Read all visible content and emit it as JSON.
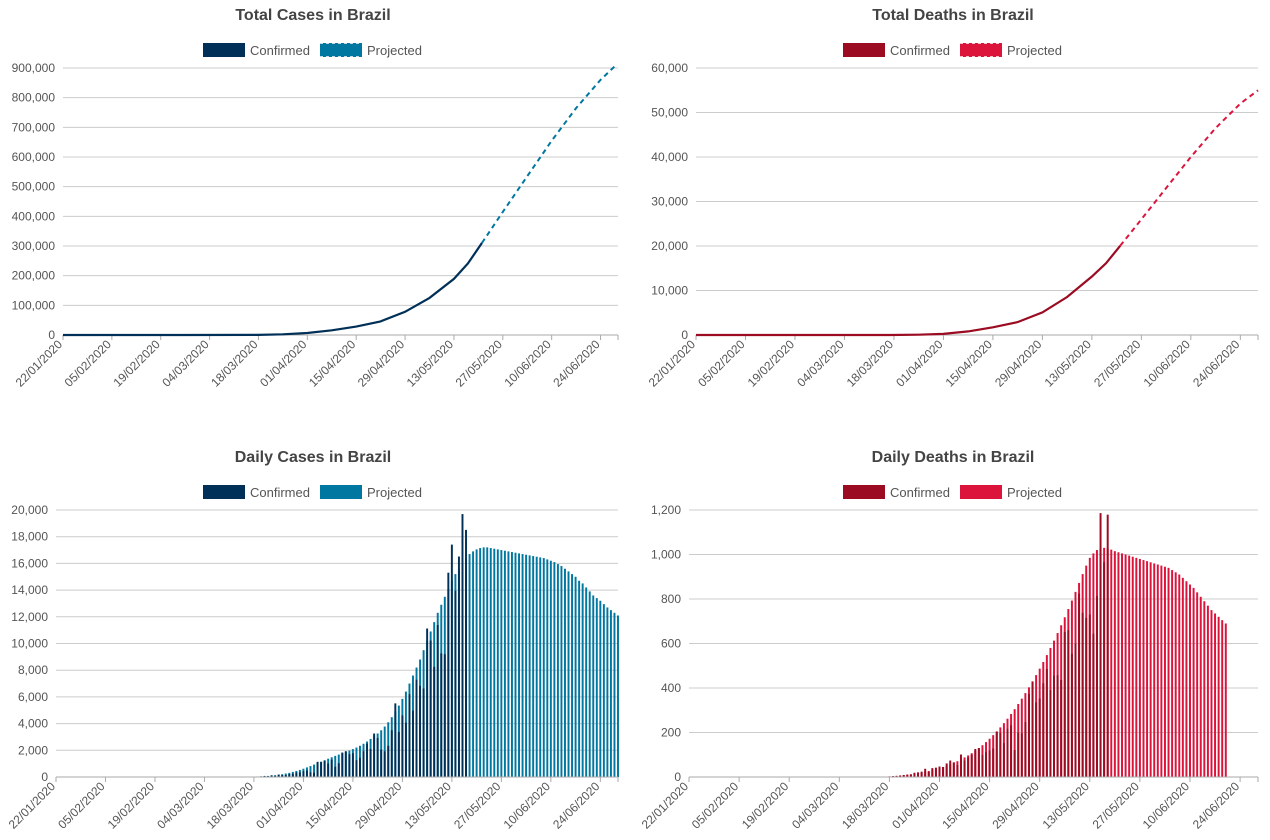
{
  "chart_data": [
    {
      "id": "total-cases",
      "type": "line",
      "title": "Total Cases in Brazil",
      "legend": [
        "Confirmed",
        "Projected"
      ],
      "colors": {
        "confirmed": "#003057",
        "projected": "#0077a0"
      },
      "ylim": [
        0,
        900000
      ],
      "yticks": [
        0,
        100000,
        200000,
        300000,
        400000,
        500000,
        600000,
        700000,
        800000,
        900000
      ],
      "ytick_labels": [
        "0",
        "100,000",
        "200,000",
        "300,000",
        "400,000",
        "500,000",
        "600,000",
        "700,000",
        "800,000",
        "900,000"
      ],
      "x_ticks": [
        "22/01/2020",
        "05/02/2020",
        "19/02/2020",
        "04/03/2020",
        "18/03/2020",
        "01/04/2020",
        "15/04/2020",
        "29/04/2020",
        "13/05/2020",
        "27/05/2020",
        "10/06/2020",
        "24/06/2020"
      ],
      "confirmed_points": [
        [
          "22/01/2020",
          0
        ],
        [
          "26/02/2020",
          1
        ],
        [
          "18/03/2020",
          428
        ],
        [
          "25/03/2020",
          2433
        ],
        [
          "01/04/2020",
          6836
        ],
        [
          "08/04/2020",
          15927
        ],
        [
          "15/04/2020",
          28320
        ],
        [
          "22/04/2020",
          45757
        ],
        [
          "29/04/2020",
          78162
        ],
        [
          "06/05/2020",
          125218
        ],
        [
          "13/05/2020",
          188974
        ],
        [
          "17/05/2020",
          241080
        ],
        [
          "21/05/2020",
          310087
        ]
      ],
      "projected_points": [
        [
          "21/05/2020",
          310087
        ],
        [
          "27/05/2020",
          415000
        ],
        [
          "03/06/2020",
          535000
        ],
        [
          "10/06/2020",
          655000
        ],
        [
          "17/06/2020",
          765000
        ],
        [
          "24/06/2020",
          860000
        ],
        [
          "28/06/2020",
          905000
        ]
      ]
    },
    {
      "id": "total-deaths",
      "type": "line",
      "title": "Total Deaths in Brazil",
      "legend": [
        "Confirmed",
        "Projected"
      ],
      "colors": {
        "confirmed": "#9b0b22",
        "projected": "#dc143c"
      },
      "ylim": [
        0,
        60000
      ],
      "yticks": [
        0,
        10000,
        20000,
        30000,
        40000,
        50000,
        60000
      ],
      "ytick_labels": [
        "0",
        "10,000",
        "20,000",
        "30,000",
        "40,000",
        "50,000",
        "60,000"
      ],
      "x_ticks": [
        "22/01/2020",
        "05/02/2020",
        "19/02/2020",
        "04/03/2020",
        "18/03/2020",
        "01/04/2020",
        "15/04/2020",
        "29/04/2020",
        "13/05/2020",
        "27/05/2020",
        "10/06/2020",
        "24/06/2020"
      ],
      "confirmed_points": [
        [
          "22/01/2020",
          0
        ],
        [
          "17/03/2020",
          1
        ],
        [
          "25/03/2020",
          59
        ],
        [
          "01/04/2020",
          241
        ],
        [
          "08/04/2020",
          819
        ],
        [
          "15/04/2020",
          1736
        ],
        [
          "22/04/2020",
          2906
        ],
        [
          "29/04/2020",
          5083
        ],
        [
          "06/05/2020",
          8536
        ],
        [
          "13/05/2020",
          13149
        ],
        [
          "17/05/2020",
          16118
        ],
        [
          "21/05/2020",
          20047
        ]
      ],
      "projected_points": [
        [
          "21/05/2020",
          20047
        ],
        [
          "27/05/2020",
          26000
        ],
        [
          "03/06/2020",
          33000
        ],
        [
          "10/06/2020",
          40000
        ],
        [
          "17/06/2020",
          46500
        ],
        [
          "24/06/2020",
          52000
        ],
        [
          "29/06/2020",
          55000
        ]
      ]
    },
    {
      "id": "daily-cases",
      "type": "bar",
      "title": "Daily Cases in Brazil",
      "legend": [
        "Confirmed",
        "Projected"
      ],
      "colors": {
        "confirmed": "#003057",
        "projected": "#0077a0"
      },
      "ylim": [
        0,
        20000
      ],
      "yticks": [
        0,
        2000,
        4000,
        6000,
        8000,
        10000,
        12000,
        14000,
        16000,
        18000,
        20000
      ],
      "ytick_labels": [
        "0",
        "2,000",
        "4,000",
        "6,000",
        "8,000",
        "10,000",
        "12,000",
        "14,000",
        "16,000",
        "18,000",
        "20,000"
      ],
      "x_ticks": [
        "22/01/2020",
        "05/02/2020",
        "19/02/2020",
        "04/03/2020",
        "18/03/2020",
        "01/04/2020",
        "15/04/2020",
        "29/04/2020",
        "13/05/2020",
        "27/05/2020",
        "10/06/2020",
        "24/06/2020"
      ],
      "start_date": "22/01/2020",
      "confirmed_end_date": "21/05/2020",
      "end_date": "29/06/2020",
      "confirmed_values": [
        0,
        0,
        0,
        0,
        0,
        0,
        0,
        0,
        0,
        0,
        0,
        0,
        0,
        0,
        0,
        0,
        0,
        0,
        0,
        0,
        0,
        0,
        0,
        0,
        0,
        0,
        0,
        0,
        0,
        0,
        0,
        0,
        0,
        0,
        0,
        1,
        0,
        0,
        0,
        0,
        0,
        0,
        0,
        0,
        0,
        0,
        0,
        0,
        0,
        0,
        0,
        10,
        0,
        0,
        0,
        20,
        10,
        40,
        52,
        80,
        60,
        130,
        101,
        181,
        148,
        150,
        225,
        250,
        340,
        345,
        432,
        487,
        352,
        323,
        1138,
        1119,
        1208,
        1012,
        1304,
        770,
        1031,
        1832,
        1935,
        1708,
        1789,
        1261,
        1442,
        1927,
        2498,
        2105,
        3257,
        2917,
        2055,
        1927,
        2336,
        3503,
        5514,
        3379,
        4613,
        4075,
        6209,
        4970,
        7288,
        6835,
        6633,
        11121,
        10222,
        8254,
        11385,
        9258,
        9196,
        15305,
        17408,
        13944,
        16517,
        19694,
        18508
      ],
      "projected_values": [
        0,
        0,
        0,
        0,
        0,
        0,
        0,
        0,
        0,
        0,
        0,
        0,
        0,
        0,
        0,
        0,
        0,
        0,
        0,
        0,
        0,
        0,
        0,
        0,
        0,
        0,
        0,
        0,
        0,
        0,
        0,
        0,
        0,
        0,
        0,
        0,
        0,
        0,
        0,
        0,
        0,
        0,
        0,
        0,
        0,
        0,
        0,
        0,
        0,
        0,
        0,
        0,
        0,
        0,
        0,
        0,
        0,
        0,
        0,
        50,
        80,
        100,
        130,
        170,
        210,
        260,
        310,
        380,
        450,
        530,
        620,
        720,
        820,
        930,
        1040,
        1150,
        1260,
        1370,
        1480,
        1580,
        1680,
        1780,
        1880,
        1980,
        2090,
        2210,
        2340,
        2490,
        2660,
        2850,
        3050,
        3260,
        3500,
        3780,
        4100,
        4480,
        4900,
        5350,
        5850,
        6400,
        7000,
        7600,
        8200,
        8800,
        9500,
        10200,
        10900,
        11600,
        12300,
        12900,
        13500,
        14100,
        14700,
        15200,
        15600,
        16000,
        16400,
        16700,
        16900,
        17050,
        17150,
        17200,
        17200,
        17150,
        17100,
        17050,
        17000,
        16950,
        16900,
        16850,
        16800,
        16750,
        16700,
        16650,
        16600,
        16550,
        16500,
        16450,
        16400,
        16300,
        16200,
        16100,
        15950,
        15800,
        15600,
        15400,
        15200,
        15000,
        14700,
        14500,
        14200,
        13900,
        13600,
        13400,
        13200,
        12950,
        12700,
        12500,
        12300,
        12100
      ]
    },
    {
      "id": "daily-deaths",
      "type": "bar",
      "title": "Daily Deaths in Brazil",
      "legend": [
        "Confirmed",
        "Projected"
      ],
      "colors": {
        "confirmed": "#9b0b22",
        "projected": "#dc143c"
      },
      "ylim": [
        0,
        1200
      ],
      "yticks": [
        0,
        200,
        400,
        600,
        800,
        1000,
        1200
      ],
      "ytick_labels": [
        "0",
        "200",
        "400",
        "600",
        "800",
        "1,000",
        "1,200"
      ],
      "x_ticks": [
        "22/01/2020",
        "05/02/2020",
        "19/02/2020",
        "04/03/2020",
        "18/03/2020",
        "01/04/2020",
        "15/04/2020",
        "29/04/2020",
        "13/05/2020",
        "27/05/2020",
        "10/06/2020",
        "24/06/2020"
      ],
      "start_date": "22/01/2020",
      "confirmed_end_date": "21/05/2020",
      "end_date": "29/06/2020",
      "confirmed_values": [
        0,
        0,
        0,
        0,
        0,
        0,
        0,
        0,
        0,
        0,
        0,
        0,
        0,
        0,
        0,
        0,
        0,
        0,
        0,
        0,
        0,
        0,
        0,
        0,
        0,
        0,
        0,
        0,
        0,
        0,
        0,
        0,
        0,
        0,
        0,
        0,
        0,
        0,
        0,
        0,
        0,
        0,
        0,
        0,
        0,
        0,
        0,
        0,
        0,
        0,
        0,
        0,
        0,
        0,
        0,
        1,
        2,
        4,
        5,
        7,
        9,
        11,
        12,
        19,
        21,
        24,
        37,
        23,
        40,
        42,
        47,
        45,
        61,
        74,
        66,
        54,
        101,
        74,
        88,
        100,
        126,
        130,
        99,
        111,
        119,
        128,
        204,
        198,
        152,
        217,
        232,
        121,
        199,
        196,
        247,
        373,
        428,
        335,
        353,
        421,
        485,
        391,
        456,
        458,
        436,
        652,
        660,
        554,
        600,
        824,
        738,
        715,
        730,
        644,
        813,
        1186,
        965,
        1179
      ],
      "projected_values": [
        0,
        0,
        0,
        0,
        0,
        0,
        0,
        0,
        0,
        0,
        0,
        0,
        0,
        0,
        0,
        0,
        0,
        0,
        0,
        0,
        0,
        0,
        0,
        0,
        0,
        0,
        0,
        0,
        0,
        0,
        0,
        0,
        0,
        0,
        0,
        0,
        0,
        0,
        0,
        0,
        0,
        0,
        0,
        0,
        0,
        0,
        0,
        0,
        0,
        0,
        0,
        0,
        0,
        0,
        0,
        2,
        3,
        4,
        5,
        6,
        8,
        10,
        12,
        14,
        17,
        20,
        23,
        27,
        31,
        35,
        40,
        45,
        51,
        57,
        64,
        71,
        79,
        88,
        97,
        107,
        118,
        130,
        143,
        157,
        172,
        188,
        205,
        223,
        242,
        262,
        283,
        305,
        328,
        352,
        377,
        403,
        430,
        458,
        487,
        517,
        548,
        580,
        613,
        647,
        682,
        718,
        755,
        793,
        832,
        872,
        912,
        950,
        985,
        1005,
        1020,
        1028,
        1030,
        1028,
        1022,
        1015,
        1010,
        1005,
        1000,
        995,
        990,
        985,
        980,
        975,
        970,
        965,
        960,
        955,
        950,
        945,
        940,
        930,
        920,
        910,
        895,
        880,
        865,
        850,
        830,
        810,
        790,
        770,
        750,
        735,
        720,
        705,
        690
      ]
    }
  ]
}
